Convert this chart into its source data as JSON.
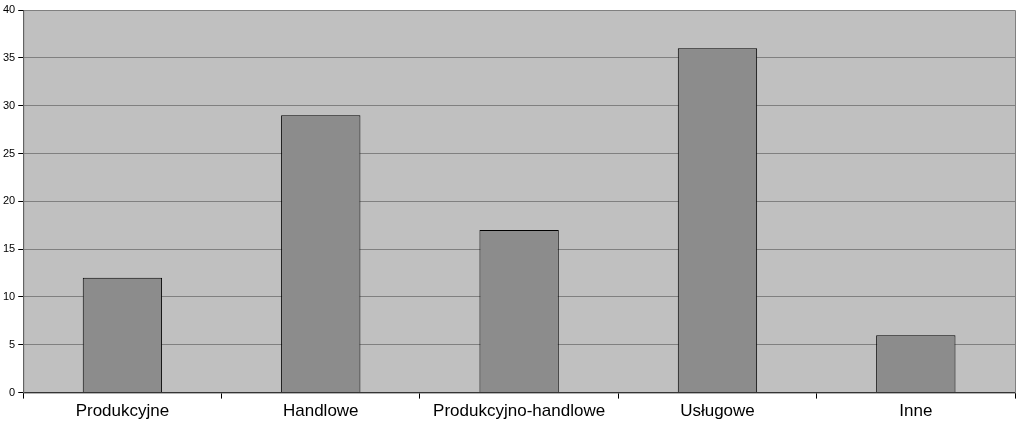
{
  "chart_data": {
    "type": "bar",
    "categories": [
      "Produkcyjne",
      "Handlowe",
      "Produkcyjno-handlowe",
      "Usługowe",
      "Inne"
    ],
    "values": [
      12,
      29,
      17,
      36,
      6
    ],
    "color": "#8c8c8c",
    "ylim": [
      0,
      40
    ],
    "yticks": [
      0,
      5,
      10,
      15,
      20,
      25,
      30,
      35,
      40
    ],
    "grid": "y",
    "legend": false
  }
}
